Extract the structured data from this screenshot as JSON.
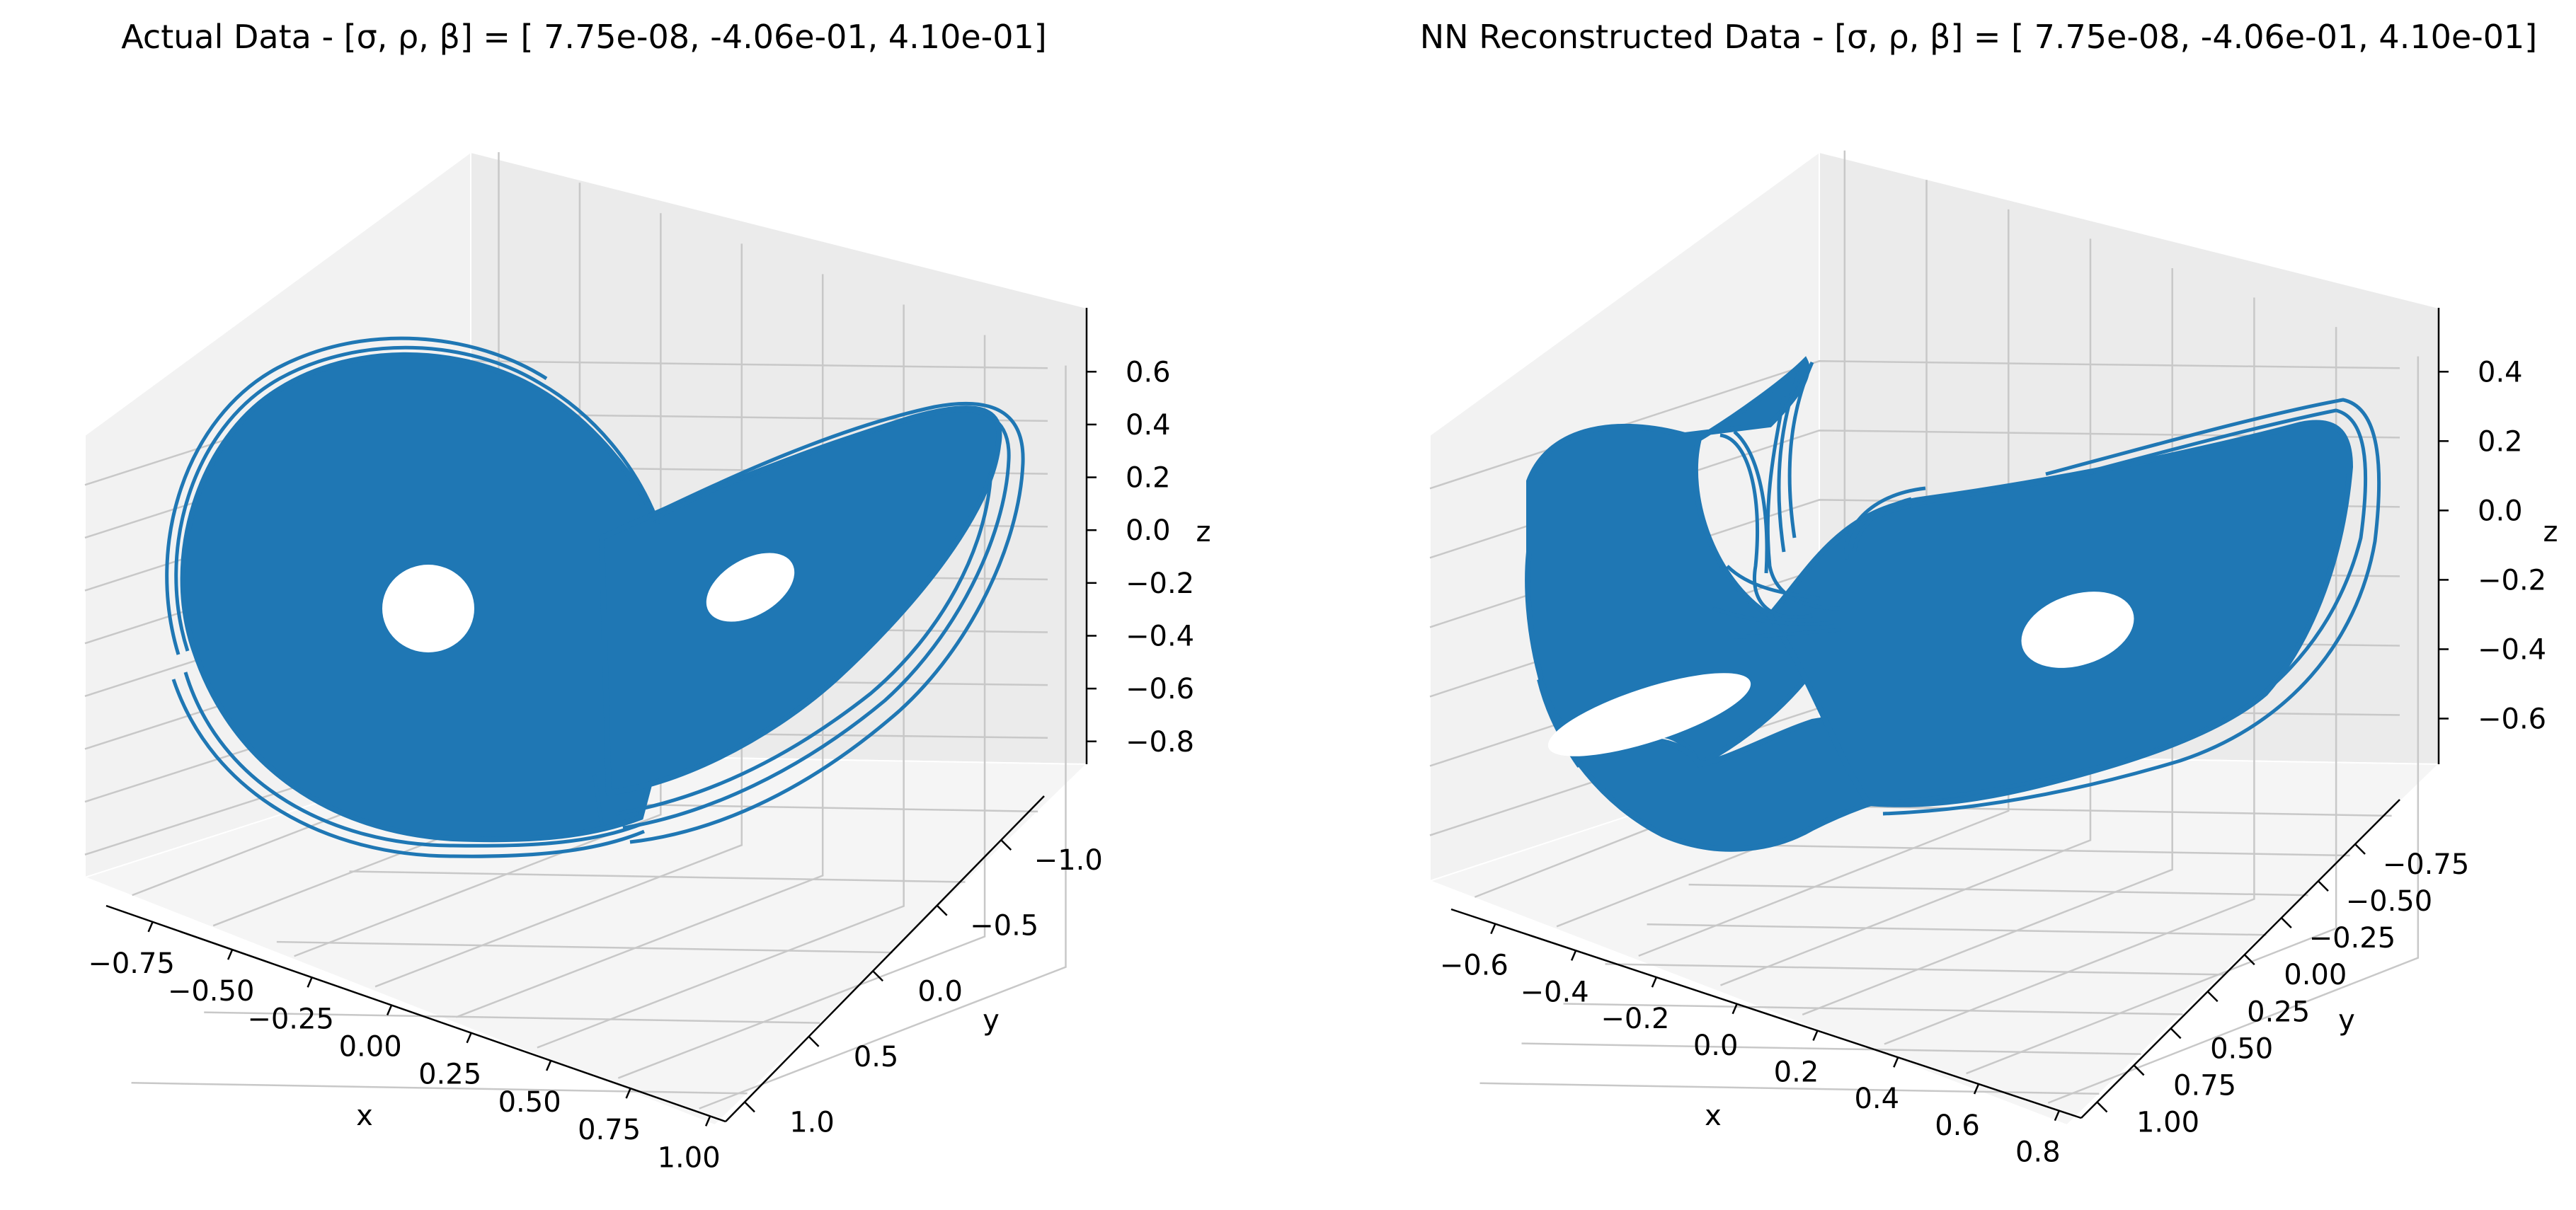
{
  "figure": {
    "chart_data": [
      {
        "type": "line",
        "projection": "3d",
        "title": "Actual Data - [σ, ρ, β] = [ 7.75e-08, -4.06e-01,  4.10e-01]",
        "xlabel": "x",
        "ylabel": "y",
        "zlabel": "z",
        "xlim": [
          -0.9,
          1.0
        ],
        "ylim": [
          -1.2,
          1.2
        ],
        "zlim": [
          -1.0,
          0.7
        ],
        "xticks": [
          "−0.75",
          "−0.50",
          "−0.25",
          "0.00",
          "0.25",
          "0.50",
          "0.75",
          "1.00"
        ],
        "yticks": [
          "−1.0",
          "−0.5",
          "0.0",
          "0.5",
          "1.0"
        ],
        "zticks": [
          "−0.8",
          "−0.6",
          "−0.4",
          "−0.2",
          "0.0",
          "0.2",
          "0.4",
          "0.6"
        ],
        "grid": true,
        "series": [
          {
            "color": "#1f77b4"
          }
        ]
      },
      {
        "type": "line",
        "projection": "3d",
        "title": "NN Reconstructed Data - [σ, ρ, β] = [ 7.75e-08, -4.06e-01,  4.10e-01]",
        "xlabel": "x",
        "ylabel": "y",
        "zlabel": "z",
        "xlim": [
          -0.7,
          0.9
        ],
        "ylim": [
          -0.85,
          1.05
        ],
        "zlim": [
          -0.75,
          0.5
        ],
        "xticks": [
          "−0.6",
          "−0.4",
          "−0.2",
          "0.0",
          "0.2",
          "0.4",
          "0.6",
          "0.8"
        ],
        "yticks": [
          "−0.75",
          "−0.50",
          "−0.25",
          "0.00",
          "0.25",
          "0.50",
          "0.75",
          "1.00"
        ],
        "zticks": [
          "−0.6",
          "−0.4",
          "−0.2",
          "0.0",
          "0.2",
          "0.4"
        ],
        "grid": true,
        "series": [
          {
            "color": "#1f77b4"
          }
        ]
      }
    ]
  }
}
